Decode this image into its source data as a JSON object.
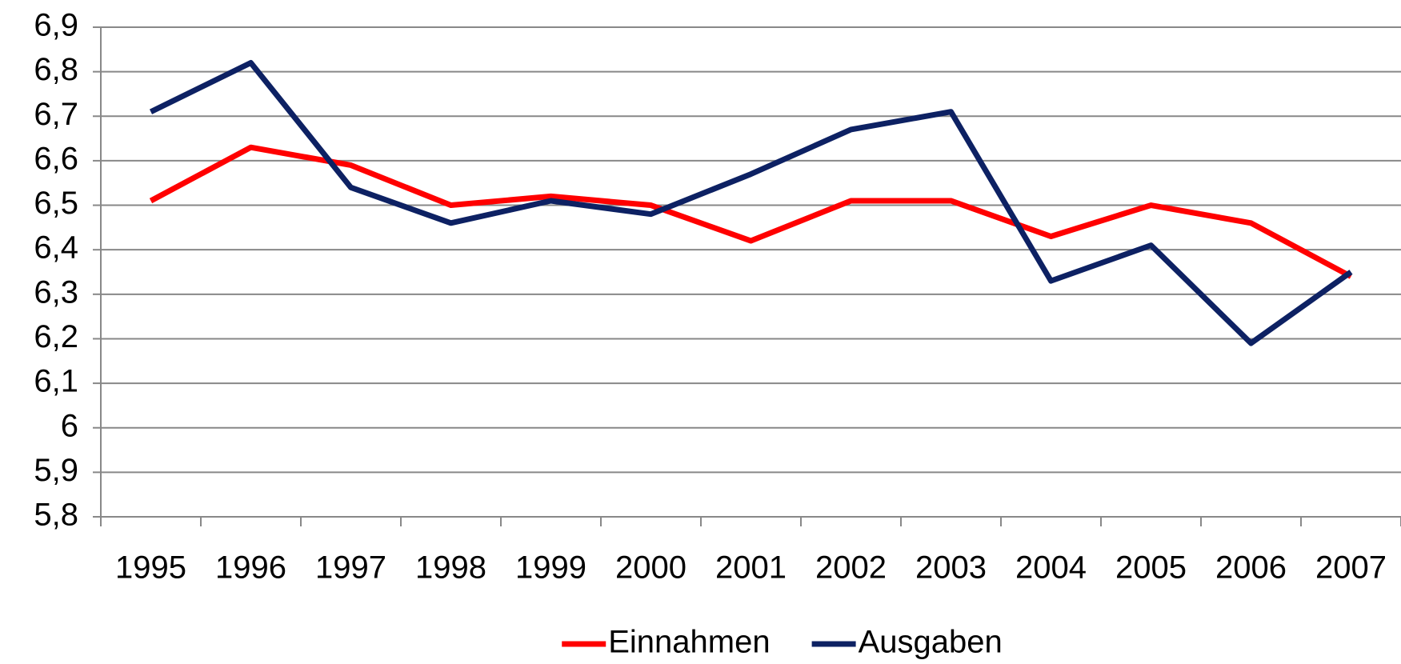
{
  "chart_data": {
    "type": "line",
    "categories": [
      "1995",
      "1996",
      "1997",
      "1998",
      "1999",
      "2000",
      "2001",
      "2002",
      "2003",
      "2004",
      "2005",
      "2006",
      "2007"
    ],
    "series": [
      {
        "name": "Einnahmen",
        "color": "#ff0000",
        "values": [
          6.51,
          6.63,
          6.59,
          6.5,
          6.52,
          6.5,
          6.42,
          6.51,
          6.51,
          6.43,
          6.5,
          6.46,
          6.34
        ]
      },
      {
        "name": "Ausgaben",
        "color": "#0d2163",
        "values": [
          6.71,
          6.82,
          6.54,
          6.46,
          6.51,
          6.48,
          6.57,
          6.67,
          6.71,
          6.33,
          6.41,
          6.19,
          6.35
        ]
      }
    ],
    "ylim": [
      5.8,
      6.9
    ],
    "yticks": [
      {
        "value": 5.8,
        "label": "5,8"
      },
      {
        "value": 5.9,
        "label": "5,9"
      },
      6,
      {
        "value": 6.1,
        "label": "6,1"
      },
      {
        "value": 6.2,
        "label": "6,2"
      },
      {
        "value": 6.3,
        "label": "6,3"
      },
      {
        "value": 6.4,
        "label": "6,4"
      },
      {
        "value": 6.5,
        "label": "6,5"
      },
      {
        "value": 6.6,
        "label": "6,6"
      },
      {
        "value": 6.7,
        "label": "6,7"
      },
      {
        "value": 6.8,
        "label": "6,8"
      },
      {
        "value": 6.9,
        "label": "6,9"
      }
    ],
    "grid": true,
    "legend": "bottom"
  }
}
